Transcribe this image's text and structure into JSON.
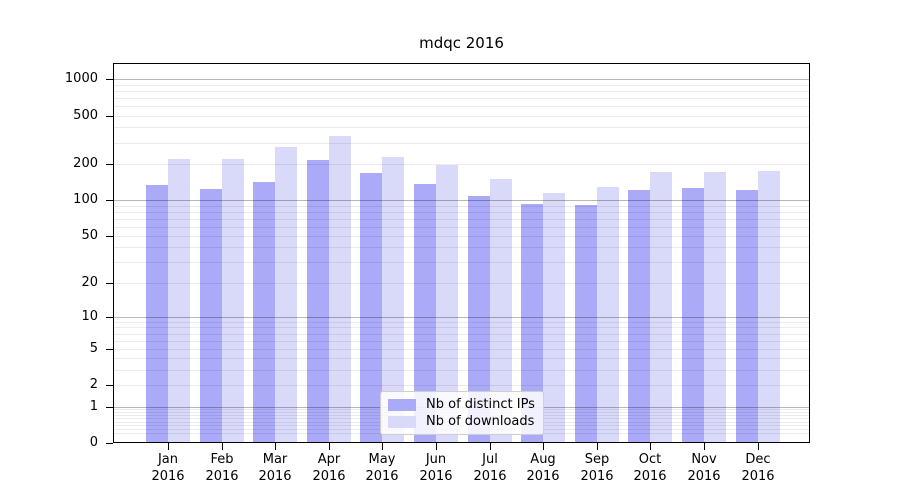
{
  "chart_data": {
    "type": "bar",
    "title": "mdqc 2016",
    "scale": "symlog (log1p)",
    "grid": true,
    "legend_position": "lower center inside axes",
    "categories": [
      "Jan",
      "Feb",
      "Mar",
      "Apr",
      "May",
      "Jun",
      "Jul",
      "Aug",
      "Sep",
      "Oct",
      "Nov",
      "Dec"
    ],
    "year": "2016",
    "series": [
      {
        "name": "Nb of distinct IPs",
        "color": "#aaaaf8",
        "values": [
          134,
          124,
          140,
          216,
          169,
          136,
          108,
          92,
          91,
          121,
          127,
          121
        ]
      },
      {
        "name": "Nb of downloads",
        "color": "#d9d9f9",
        "values": [
          220,
          220,
          277,
          342,
          228,
          197,
          149,
          115,
          129,
          172,
          172,
          175
        ]
      }
    ],
    "yticks": [
      0,
      1,
      2,
      5,
      10,
      20,
      50,
      100,
      200,
      500,
      1000
    ],
    "major_gridlines": [
      1,
      10,
      100,
      1000
    ],
    "ylim": [
      0,
      1362
    ],
    "colors": {
      "major_grid": "#b7b7b7",
      "minor_grid": "#eaeaea",
      "spine": "#000000",
      "background": "#ffffff"
    }
  }
}
